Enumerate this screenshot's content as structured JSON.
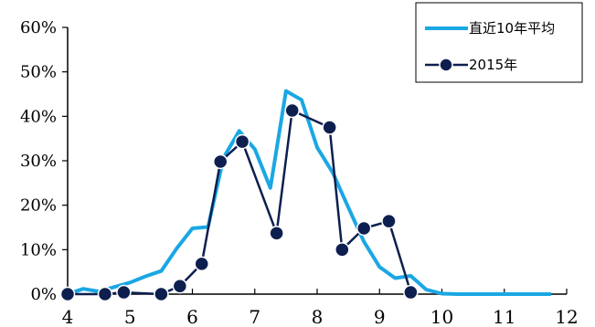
{
  "chart_data": {
    "type": "line",
    "title": "",
    "xlabel": "",
    "ylabel": "",
    "xlim": [
      4,
      12
    ],
    "ylim": [
      0,
      60
    ],
    "x_ticks": [
      "4",
      "5",
      "6",
      "7",
      "8",
      "9",
      "10",
      "11",
      "12"
    ],
    "y_ticks": [
      "0%",
      "10%",
      "20%",
      "30%",
      "40%",
      "50%",
      "60%"
    ],
    "grid": false,
    "legend_position": "top-right",
    "series": [
      {
        "name": "直近10年平均",
        "color": "#1aa7e4",
        "marker": "none",
        "x": [
          4.0,
          4.25,
          4.5,
          4.75,
          5.0,
          5.25,
          5.5,
          5.75,
          6.0,
          6.25,
          6.5,
          6.75,
          7.0,
          7.25,
          7.5,
          7.75,
          8.0,
          8.25,
          8.5,
          8.75,
          9.0,
          9.25,
          9.5,
          9.75,
          10.0,
          10.25,
          10.5,
          10.75,
          11.0,
          11.25,
          11.5,
          11.75
        ],
        "values": [
          0,
          1.2,
          0.6,
          1.6,
          2.6,
          4.0,
          5.2,
          10.3,
          14.8,
          15.1,
          30.7,
          36.7,
          32.6,
          23.9,
          45.7,
          43.7,
          33.0,
          27.3,
          19.5,
          11.8,
          6.1,
          3.6,
          4.1,
          1.0,
          0.1,
          0,
          0,
          0,
          0,
          0,
          0,
          0
        ]
      },
      {
        "name": "2015年",
        "color": "#0d1f4f",
        "marker": "circle",
        "x": [
          4.0,
          4.6,
          4.9,
          5.5,
          5.8,
          6.15,
          6.45,
          6.8,
          7.35,
          7.6,
          8.2,
          8.4,
          8.75,
          9.15,
          9.5
        ],
        "values": [
          0,
          0,
          0.4,
          0,
          1.8,
          6.8,
          29.8,
          34.3,
          13.7,
          41.3,
          37.5,
          10.0,
          14.8,
          16.4,
          0.4
        ]
      }
    ]
  }
}
